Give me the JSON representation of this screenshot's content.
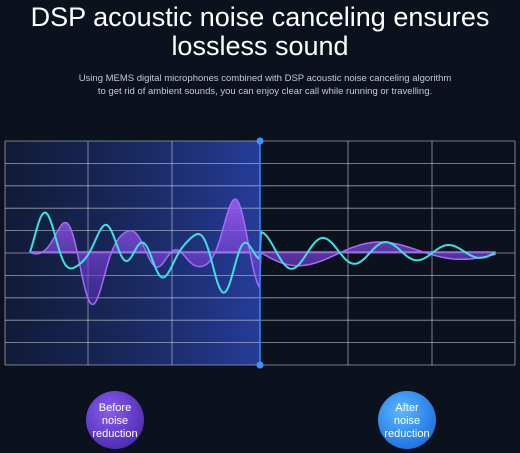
{
  "header": {
    "title_lines": [
      "DSP acoustic noise canceling ensures",
      "lossless sound"
    ],
    "description_lines": [
      "Using MEMS digital microphones combined with DSP acoustic noise canceling algorithm",
      "to get rid of ambient sounds, you can enjoy clear call while running or travelling."
    ]
  },
  "labels": {
    "before": [
      "Before",
      "noise",
      "reduction"
    ],
    "after": [
      "After",
      "noise",
      "reduction"
    ]
  }
}
